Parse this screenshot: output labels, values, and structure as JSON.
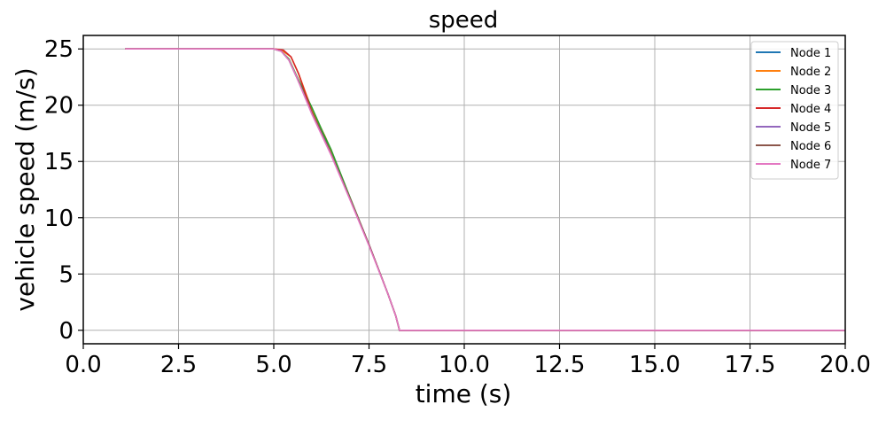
{
  "chart_data": {
    "type": "line",
    "title": "speed",
    "xlabel": "time (s)",
    "ylabel": "vehicle speed (m/s)",
    "xlim": [
      0,
      20
    ],
    "ylim": [
      -1.2,
      26.2
    ],
    "xticks": [
      0,
      2.5,
      5,
      7.5,
      10,
      12.5,
      15,
      17.5,
      20
    ],
    "xtick_labels": [
      "0.0",
      "2.5",
      "5.0",
      "7.5",
      "10.0",
      "12.5",
      "15.0",
      "17.5",
      "20.0"
    ],
    "yticks": [
      0,
      5,
      10,
      15,
      20,
      25
    ],
    "ytick_labels": [
      "0",
      "5",
      "10",
      "15",
      "20",
      "25"
    ],
    "grid": true,
    "legend_position": "top-right",
    "series": [
      {
        "name": "Node 1",
        "color": "#1f77b4",
        "x": [
          1.1,
          5.0,
          5.2,
          5.4,
          5.6,
          6.0,
          6.5,
          7.0,
          7.5,
          8.0,
          8.2,
          8.3,
          20.0
        ],
        "y": [
          25,
          25,
          24.8,
          24.0,
          22.5,
          19.5,
          15.8,
          11.8,
          7.6,
          3.2,
          1.3,
          0,
          0
        ]
      },
      {
        "name": "Node 2",
        "color": "#ff7f0e",
        "x": [
          1.1,
          5.0,
          5.2,
          5.45,
          5.65,
          6.0,
          6.35,
          6.5,
          7.0,
          7.5,
          8.0,
          8.2,
          8.3,
          20.0
        ],
        "y": [
          25,
          25,
          24.9,
          24.3,
          22.8,
          19.6,
          17.2,
          16.0,
          11.8,
          7.6,
          3.2,
          1.3,
          0,
          0
        ]
      },
      {
        "name": "Node 3",
        "color": "#2ca02c",
        "x": [
          1.1,
          5.0,
          5.2,
          5.4,
          5.6,
          6.0,
          6.3,
          6.5,
          7.0,
          7.5,
          8.0,
          8.2,
          8.3,
          20.0
        ],
        "y": [
          25,
          25,
          24.8,
          24.1,
          22.6,
          19.8,
          17.5,
          16.1,
          11.8,
          7.6,
          3.2,
          1.3,
          0,
          0
        ]
      },
      {
        "name": "Node 4",
        "color": "#d62728",
        "x": [
          1.1,
          5.0,
          5.25,
          5.45,
          5.65,
          6.0,
          6.5,
          7.0,
          7.5,
          8.0,
          8.2,
          8.3,
          20.0
        ],
        "y": [
          25,
          25,
          24.9,
          24.3,
          22.8,
          19.4,
          15.7,
          11.7,
          7.6,
          3.2,
          1.3,
          0,
          0
        ]
      },
      {
        "name": "Node 5",
        "color": "#9467bd",
        "x": [
          1.1,
          5.0,
          5.2,
          5.4,
          5.6,
          6.0,
          6.5,
          7.0,
          7.5,
          8.0,
          8.2,
          8.3,
          20.0
        ],
        "y": [
          25,
          25,
          24.8,
          24.0,
          22.5,
          19.3,
          15.7,
          11.7,
          7.6,
          3.2,
          1.3,
          0,
          0
        ]
      },
      {
        "name": "Node 6",
        "color": "#8c564b",
        "x": [
          1.1,
          5.0,
          5.2,
          5.4,
          5.6,
          6.0,
          6.5,
          7.0,
          7.5,
          8.0,
          8.2,
          8.3,
          20.0
        ],
        "y": [
          25,
          25,
          24.8,
          24.0,
          22.5,
          19.3,
          15.7,
          11.7,
          7.6,
          3.2,
          1.3,
          0,
          0
        ]
      },
      {
        "name": "Node 7",
        "color": "#e377c2",
        "x": [
          1.1,
          5.0,
          5.2,
          5.4,
          5.6,
          6.0,
          6.5,
          7.0,
          7.5,
          8.0,
          8.2,
          8.3,
          20.0
        ],
        "y": [
          25,
          25,
          24.8,
          24.0,
          22.5,
          19.2,
          15.6,
          11.6,
          7.5,
          3.2,
          1.3,
          0,
          0
        ]
      }
    ]
  }
}
